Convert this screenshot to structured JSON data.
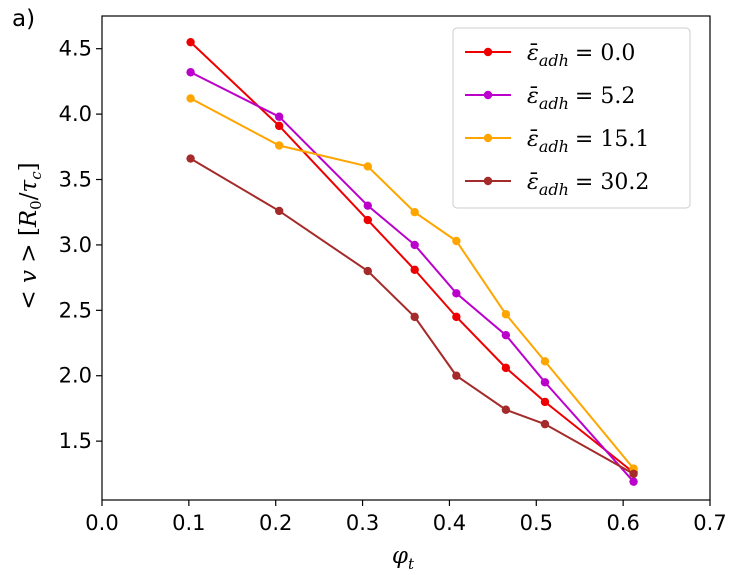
{
  "chart_data": {
    "type": "line",
    "panel_label": "a)",
    "xlabel": "φ_t",
    "ylabel": "<v> [R_0/τ_c]",
    "xlim": [
      0.0,
      0.7
    ],
    "ylim": [
      1.05,
      4.75
    ],
    "xticks": [
      0.0,
      0.1,
      0.2,
      0.3,
      0.4,
      0.5,
      0.6,
      0.7
    ],
    "xtick_labels": [
      "0.0",
      "0.1",
      "0.2",
      "0.3",
      "0.4",
      "0.5",
      "0.6",
      "0.7"
    ],
    "yticks": [
      1.5,
      2.0,
      2.5,
      3.0,
      3.5,
      4.0,
      4.5
    ],
    "ytick_labels": [
      "1.5",
      "2.0",
      "2.5",
      "3.0",
      "3.5",
      "4.0",
      "4.5"
    ],
    "legend_position": "top-right",
    "x": [
      0.102,
      0.204,
      0.306,
      0.36,
      0.408,
      0.465,
      0.51,
      0.612
    ],
    "series": [
      {
        "name": "ε̄_adh = 0.0",
        "name_main": "ε̄",
        "name_sub": "adh",
        "name_value": "= 0.0",
        "color": "#ee0000",
        "values": [
          4.55,
          3.91,
          3.19,
          2.81,
          2.45,
          2.06,
          1.8,
          1.26
        ]
      },
      {
        "name": "ε̄_adh = 5.2",
        "name_main": "ε̄",
        "name_sub": "adh",
        "name_value": "= 5.2",
        "color": "#bb00cc",
        "values": [
          4.32,
          3.98,
          3.3,
          3.0,
          2.63,
          2.31,
          1.95,
          1.19
        ]
      },
      {
        "name": "ε̄_adh = 15.1",
        "name_main": "ε̄",
        "name_sub": "adh",
        "name_value": "= 15.1",
        "color": "#ffa500",
        "values": [
          4.12,
          3.76,
          3.6,
          3.25,
          3.03,
          2.47,
          2.11,
          1.29
        ]
      },
      {
        "name": "ε̄_adh = 30.2",
        "name_main": "ε̄",
        "name_sub": "adh",
        "name_value": "= 30.2",
        "color": "#a52a2a",
        "values": [
          3.66,
          3.26,
          2.8,
          2.45,
          2.0,
          1.74,
          1.63,
          1.25
        ]
      }
    ]
  }
}
